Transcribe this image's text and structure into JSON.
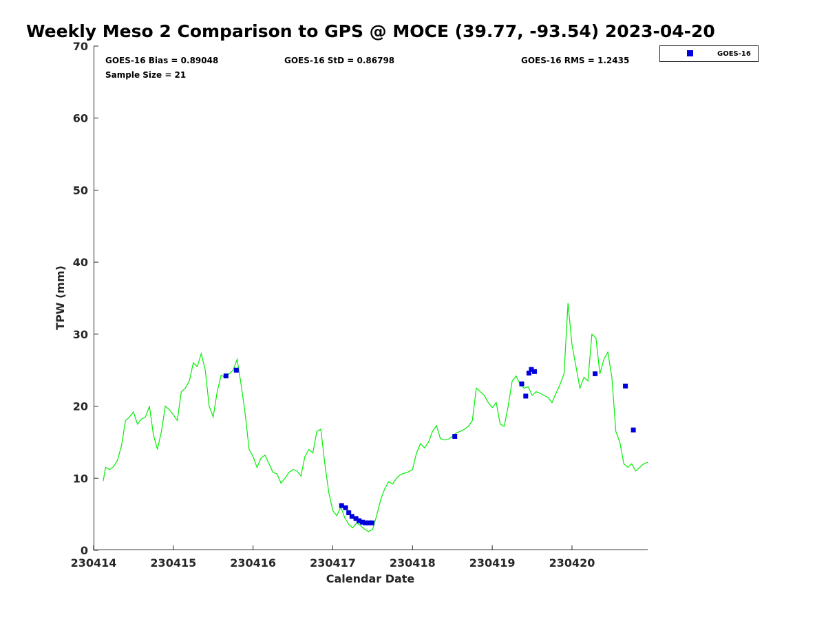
{
  "chart_data": {
    "type": "line",
    "title": "Weekly Meso 2 Comparison to GPS @ MOCE (39.77, -93.54) 2023-04-20",
    "xlabel": "Calendar Date",
    "ylabel": "TPW (mm)",
    "xlim": [
      "230414",
      "230420.95"
    ],
    "ylim": [
      0,
      70
    ],
    "x_ticks": [
      "230414",
      "230415",
      "230416",
      "230417",
      "230418",
      "230419",
      "230420"
    ],
    "y_ticks": [
      0,
      10,
      20,
      30,
      40,
      50,
      60,
      70
    ],
    "grid": false,
    "legend_position": "top-right",
    "stats": {
      "bias": "GOES-16 Bias = 0.89048",
      "std": "GOES-16 StD = 0.86798",
      "rms": "GOES-16 RMS = 1.2435",
      "sample": "Sample Size = 21"
    },
    "colors": {
      "gps_line": "#00ee00",
      "goes": "#0000dd"
    },
    "series": [
      {
        "style": "line",
        "x": [
          230414.12,
          230414.15,
          230414.2,
          230414.25,
          230414.3,
          230414.35,
          230414.4,
          230414.45,
          230414.5,
          230414.55,
          230414.6,
          230414.65,
          230414.7,
          230414.75,
          230414.8,
          230414.85,
          230414.9,
          230414.95,
          230415.0,
          230415.05,
          230415.1,
          230415.15,
          230415.2,
          230415.25,
          230415.3,
          230415.35,
          230415.4,
          230415.45,
          230415.5,
          230415.55,
          230415.6,
          230415.65,
          230415.7,
          230415.75,
          230415.8,
          230415.85,
          230415.9,
          230415.95,
          230416.0,
          230416.05,
          230416.1,
          230416.15,
          230416.2,
          230416.25,
          230416.3,
          230416.35,
          230416.4,
          230416.45,
          230416.5,
          230416.55,
          230416.6,
          230416.65,
          230416.7,
          230416.75,
          230416.8,
          230416.85,
          230416.9,
          230416.95,
          230417.0,
          230417.05,
          230417.1,
          230417.15,
          230417.2,
          230417.25,
          230417.3,
          230417.35,
          230417.4,
          230417.45,
          230417.5,
          230417.55,
          230417.6,
          230417.65,
          230417.7,
          230417.75,
          230417.8,
          230417.85,
          230417.9,
          230417.95,
          230418.0,
          230418.05,
          230418.1,
          230418.15,
          230418.2,
          230418.25,
          230418.3,
          230418.35,
          230418.4,
          230418.45,
          230418.5,
          230418.55,
          230418.6,
          230418.65,
          230418.7,
          230418.75,
          230418.8,
          230418.85,
          230418.9,
          230418.95,
          230419.0,
          230419.05,
          230419.1,
          230419.15,
          230419.2,
          230419.25,
          230419.3,
          230419.35,
          230419.4,
          230419.45,
          230419.5,
          230419.55,
          230419.6,
          230419.65,
          230419.7,
          230419.75,
          230419.8,
          230419.85,
          230419.9,
          230419.95,
          230420.0,
          230420.05,
          230420.1,
          230420.15,
          230420.2,
          230420.25,
          230420.3,
          230420.35,
          230420.4,
          230420.45,
          230420.5,
          230420.55,
          230420.6,
          230420.65,
          230420.7,
          230420.75,
          230420.8,
          230420.85,
          230420.9,
          230420.95
        ],
        "y": [
          9.6,
          11.5,
          11.2,
          11.6,
          12.5,
          14.5,
          18.0,
          18.5,
          19.2,
          17.5,
          18.2,
          18.5,
          20.0,
          16.0,
          14.0,
          16.5,
          20.0,
          19.5,
          18.8,
          18.0,
          22.0,
          22.5,
          23.5,
          26.0,
          25.5,
          27.3,
          25.0,
          20.0,
          18.5,
          22.0,
          24.3,
          24.0,
          24.5,
          25.0,
          26.5,
          23.0,
          19.0,
          14.0,
          13.0,
          11.5,
          12.8,
          13.2,
          12.0,
          10.8,
          10.6,
          9.3,
          10.0,
          10.8,
          11.2,
          11.0,
          10.3,
          13.0,
          14.0,
          13.5,
          16.5,
          16.8,
          12.0,
          8.0,
          5.5,
          4.8,
          6.0,
          4.5,
          3.6,
          3.1,
          3.8,
          3.4,
          2.9,
          2.6,
          2.9,
          4.8,
          7.0,
          8.5,
          9.5,
          9.2,
          10.0,
          10.5,
          10.7,
          10.9,
          11.2,
          13.5,
          14.8,
          14.2,
          15.0,
          16.5,
          17.3,
          15.5,
          15.3,
          15.4,
          15.8,
          16.3,
          16.5,
          16.8,
          17.2,
          18.0,
          22.5,
          22.0,
          21.5,
          20.5,
          19.8,
          20.5,
          17.5,
          17.2,
          20.0,
          23.5,
          24.2,
          23.0,
          22.5,
          22.7,
          21.5,
          22.0,
          21.8,
          21.5,
          21.2,
          20.5,
          21.8,
          23.0,
          24.5,
          34.3,
          28.5,
          25.5,
          22.5,
          24.0,
          23.5,
          30.0,
          29.5,
          24.5,
          26.5,
          27.5,
          24.0,
          16.5,
          15.0,
          12.0,
          11.5,
          12.0,
          11.0,
          11.5,
          12.0,
          12.2
        ]
      },
      {
        "name": "GOES-16",
        "style": "marker",
        "x": [
          230415.66,
          230415.79,
          230417.11,
          230417.16,
          230417.2,
          230417.24,
          230417.29,
          230417.33,
          230417.37,
          230417.41,
          230417.45,
          230417.49,
          230418.53,
          230419.37,
          230419.42,
          230419.46,
          230419.49,
          230419.53,
          230420.29,
          230420.67,
          230420.77
        ],
        "y": [
          24.2,
          25.0,
          6.2,
          5.9,
          5.2,
          4.7,
          4.4,
          4.1,
          3.9,
          3.8,
          3.8,
          3.8,
          15.8,
          23.1,
          21.4,
          24.6,
          25.1,
          24.8,
          24.5,
          22.8,
          16.7
        ]
      }
    ]
  }
}
